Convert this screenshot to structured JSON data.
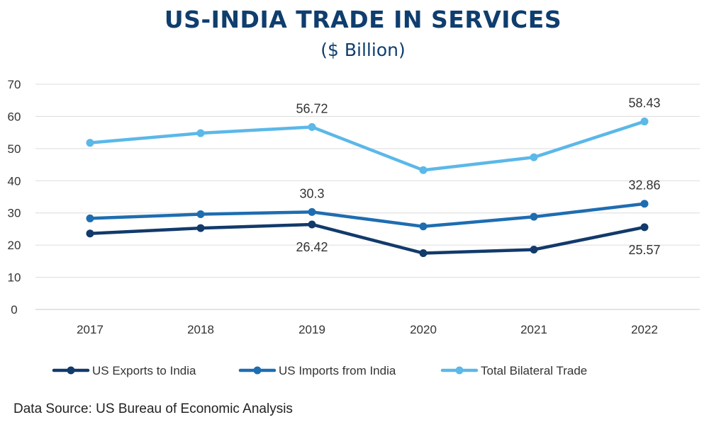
{
  "header": {
    "title": "US-INDIA TRADE IN SERVICES",
    "subtitle": "($ Billion)"
  },
  "footer": {
    "source": "Data Source: US Bureau of Economic Analysis"
  },
  "chart_data": {
    "type": "line",
    "title": "US-INDIA TRADE IN SERVICES",
    "subtitle": "($ Billion)",
    "categories": [
      "2017",
      "2018",
      "2019",
      "2020",
      "2021",
      "2022"
    ],
    "ylim": [
      0,
      70
    ],
    "yticks": [
      0,
      10,
      20,
      30,
      40,
      50,
      60,
      70
    ],
    "grid": true,
    "legend_position": "bottom",
    "series": [
      {
        "name": "US Exports to India",
        "color": "#123a6b",
        "values": [
          23.6,
          25.3,
          26.42,
          17.5,
          18.6,
          25.57
        ],
        "labels": {
          "2": "26.42",
          "5": "25.57"
        }
      },
      {
        "name": "US Imports from India",
        "color": "#1e6db1",
        "values": [
          28.3,
          29.6,
          30.3,
          25.8,
          28.8,
          32.86
        ],
        "labels": {
          "2": "30.3",
          "5": "32.86"
        }
      },
      {
        "name": "Total Bilateral Trade",
        "color": "#5bb8e8",
        "values": [
          51.8,
          54.8,
          56.72,
          43.3,
          47.3,
          58.43
        ],
        "labels": {
          "2": "56.72",
          "5": "58.43"
        }
      }
    ]
  }
}
